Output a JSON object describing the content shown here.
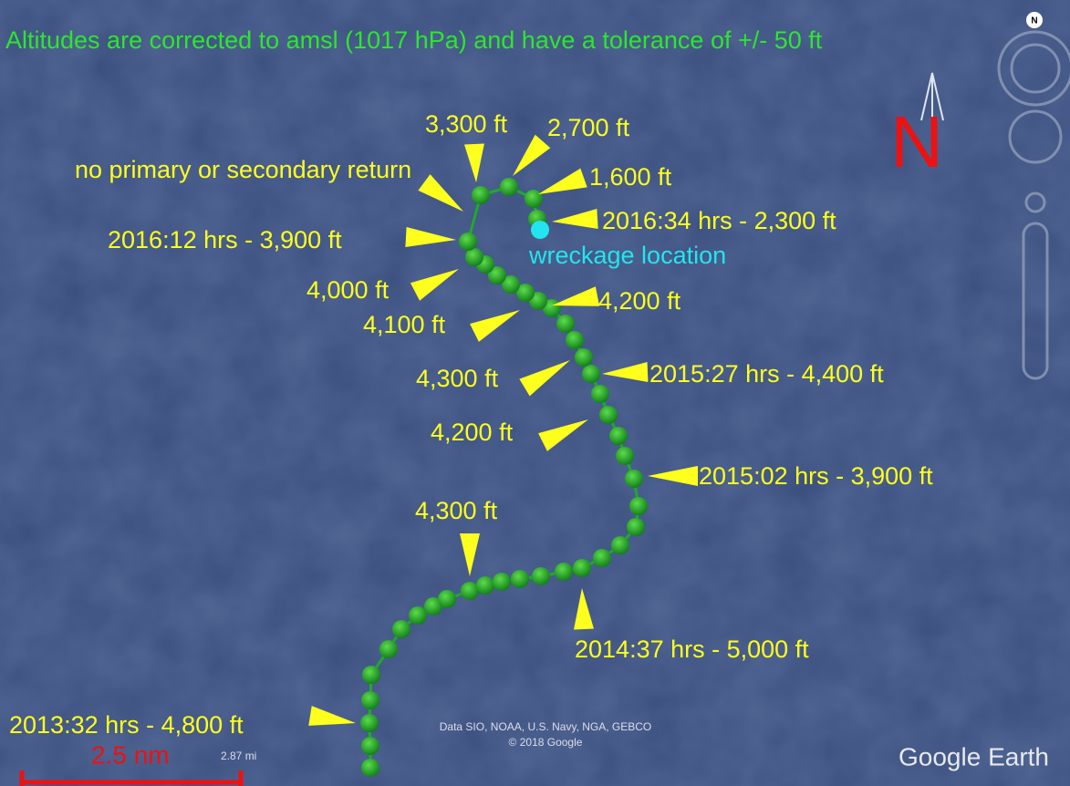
{
  "note": "Altitudes are corrected to amsl (1017 hPa) and have a tolerance of +/- 50 ft",
  "north": "N",
  "compass": "N",
  "labels": [
    "3,300 ft",
    "2,700 ft",
    "no primary or secondary return",
    "1,600 ft",
    "2016:34 hrs - 2,300 ft",
    "2016:12 hrs - 3,900 ft",
    "4,000 ft",
    "4,200 ft",
    "4,100 ft",
    "4,300 ft",
    "2015:27 hrs - 4,400 ft",
    "4,200 ft",
    "2015:02 hrs - 3,900 ft",
    "4,300 ft",
    "2014:37 hrs - 5,000 ft",
    "2013:32 hrs - 4,800 ft"
  ],
  "wreckage": "wreckage location",
  "attribution": [
    "Data SIO, NOAA, U.S. Navy, NGA, GEBCO",
    "© 2018 Google"
  ],
  "scale": {
    "nm": "2.5 nm",
    "mi": "2.87 mi"
  },
  "brand": "Google Earth"
}
